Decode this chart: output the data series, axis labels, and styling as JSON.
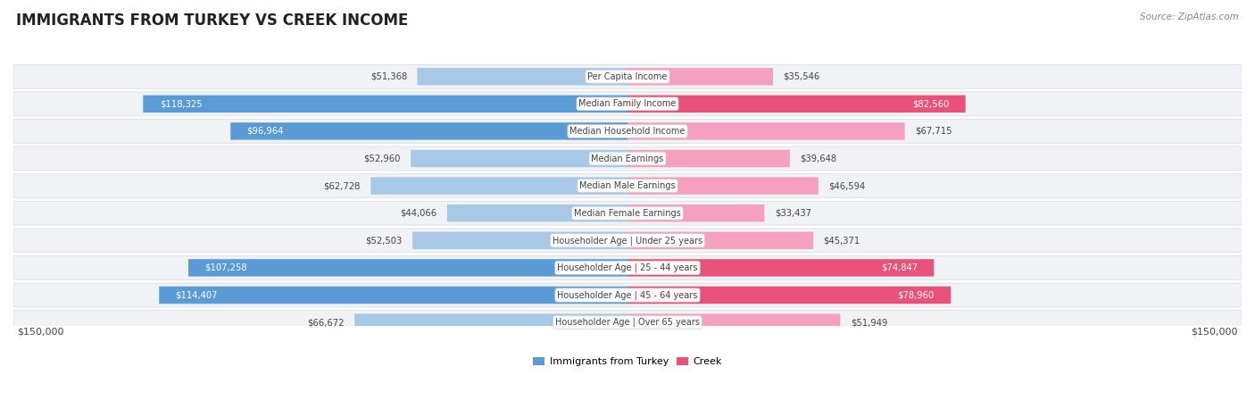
{
  "title": "IMMIGRANTS FROM TURKEY VS CREEK INCOME",
  "source": "Source: ZipAtlas.com",
  "categories": [
    "Per Capita Income",
    "Median Family Income",
    "Median Household Income",
    "Median Earnings",
    "Median Male Earnings",
    "Median Female Earnings",
    "Householder Age | Under 25 years",
    "Householder Age | 25 - 44 years",
    "Householder Age | 45 - 64 years",
    "Householder Age | Over 65 years"
  ],
  "turkey_values": [
    51368,
    118325,
    96964,
    52960,
    62728,
    44066,
    52503,
    107258,
    114407,
    66672
  ],
  "creek_values": [
    35546,
    82560,
    67715,
    39648,
    46594,
    33437,
    45371,
    74847,
    78960,
    51949
  ],
  "turkey_color_light": "#a8c8e8",
  "turkey_color_dark": "#5b9bd5",
  "creek_color_light": "#f4a0be",
  "creek_color_dark": "#e8527a",
  "max_value": 150000,
  "row_bg_color": "#f0f2f5",
  "row_border_color": "#d8dce2",
  "label_bg_color": "#ffffff",
  "turkey_label": "Immigrants from Turkey",
  "creek_label": "Creek",
  "axis_label": "$150,000",
  "bg_color": "#ffffff",
  "title_color": "#222222",
  "source_color": "#888888",
  "value_dark_color": "#444444",
  "value_light_color": "#ffffff",
  "label_text_color": "#444444",
  "inside_threshold": 70000
}
